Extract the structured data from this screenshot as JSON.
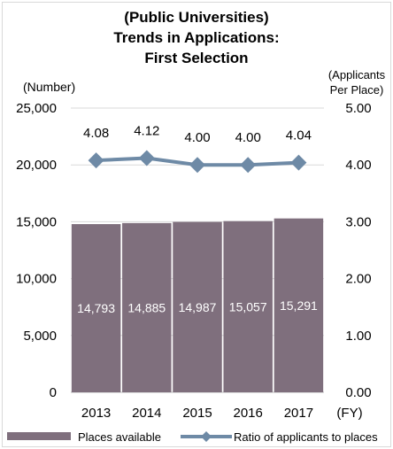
{
  "chart_data": {
    "type": "bar+line",
    "title_lines": [
      "(Public Universities)",
      "Trends in Applications:",
      "First Selection"
    ],
    "y_left_label": "(Number)",
    "y_right_label_lines": [
      "(Applicants",
      "Per Place)"
    ],
    "x_unit": "(FY)",
    "categories": [
      "2013",
      "2014",
      "2015",
      "2016",
      "2017"
    ],
    "y_left": {
      "min": 0,
      "max": 25000,
      "step": 5000,
      "tick_labels": [
        "0",
        "5,000",
        "10,000",
        "15,000",
        "20,000",
        "25,000"
      ]
    },
    "y_right": {
      "min": 0,
      "max": 5,
      "step": 1,
      "tick_labels": [
        "0.00",
        "1.00",
        "2.00",
        "3.00",
        "4.00",
        "5.00"
      ]
    },
    "series": [
      {
        "name": "Places available",
        "kind": "bar",
        "axis": "left",
        "values": [
          14793,
          14885,
          14987,
          15057,
          15291
        ],
        "labels": [
          "14,793",
          "14,885",
          "14,987",
          "15,057",
          "15,291"
        ],
        "color": "#7f6f7d"
      },
      {
        "name": "Ratio of applicants to places",
        "kind": "line",
        "axis": "right",
        "values": [
          4.08,
          4.12,
          4.0,
          4.0,
          4.04
        ],
        "labels": [
          "4.08",
          "4.12",
          "4.00",
          "4.00",
          "4.04"
        ],
        "color": "#6e8aa6"
      }
    ],
    "grid": true,
    "legend_position": "bottom"
  }
}
